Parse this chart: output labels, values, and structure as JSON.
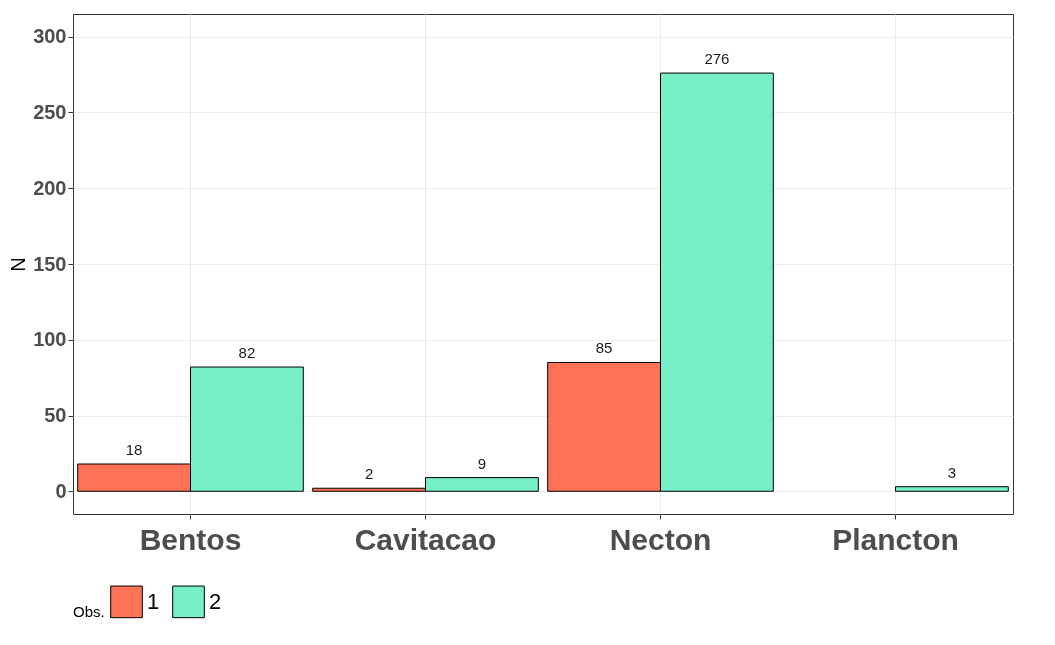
{
  "chart_data": {
    "type": "bar",
    "ylabel": "N",
    "legend_title": "Obs.",
    "categories": [
      "Bentos",
      "Cavitacao",
      "Necton",
      "Plancton"
    ],
    "series": [
      {
        "name": "1",
        "color": "#ff7256",
        "values": [
          18,
          2,
          85,
          null
        ]
      },
      {
        "name": "2",
        "color": "#76eec6",
        "values": [
          82,
          9,
          276,
          3
        ]
      }
    ],
    "ylim": [
      -15,
      315
    ],
    "yticks": [
      0,
      50,
      100,
      150,
      200,
      250,
      300
    ],
    "grid": true,
    "legend": "bottom",
    "data_labels": true
  }
}
